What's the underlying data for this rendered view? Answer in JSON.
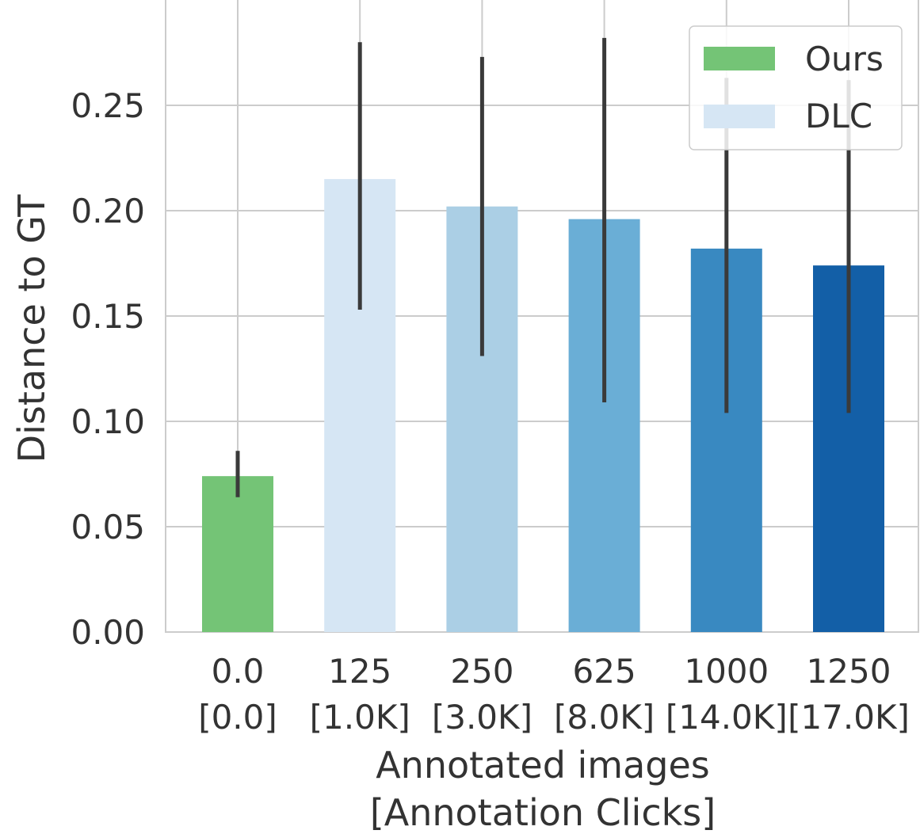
{
  "chart_data": {
    "type": "bar",
    "title": "",
    "xlabel": [
      "Annotated images",
      "[Annotation Clicks]"
    ],
    "ylabel": "Distance to GT",
    "ylim": [
      0,
      0.3
    ],
    "yticks": [
      "0.00",
      "0.05",
      "0.10",
      "0.15",
      "0.20",
      "0.25"
    ],
    "grid": true,
    "legend_position": "top-right",
    "legend": [
      {
        "name": "Ours",
        "color": "#74c476"
      },
      {
        "name": "DLC",
        "color": "#d6e6f4"
      }
    ],
    "categories": [
      {
        "line1": "0.0",
        "line2": "[0.0]"
      },
      {
        "line1": "125",
        "line2": "[1.0K]"
      },
      {
        "line1": "250",
        "line2": "[3.0K]"
      },
      {
        "line1": "625",
        "line2": "[8.0K]"
      },
      {
        "line1": "1000",
        "line2": "[14.0K]"
      },
      {
        "line1": "1250",
        "line2": "[17.0K]"
      }
    ],
    "values": [
      0.074,
      0.215,
      0.202,
      0.196,
      0.182,
      0.174
    ],
    "error_low": [
      0.064,
      0.153,
      0.131,
      0.109,
      0.104,
      0.104
    ],
    "error_high": [
      0.086,
      0.28,
      0.273,
      0.282,
      0.263,
      0.262
    ],
    "colors": [
      "#74c476",
      "#d6e6f4",
      "#abcfe5",
      "#6aaed6",
      "#3989c1",
      "#135fa7"
    ]
  }
}
